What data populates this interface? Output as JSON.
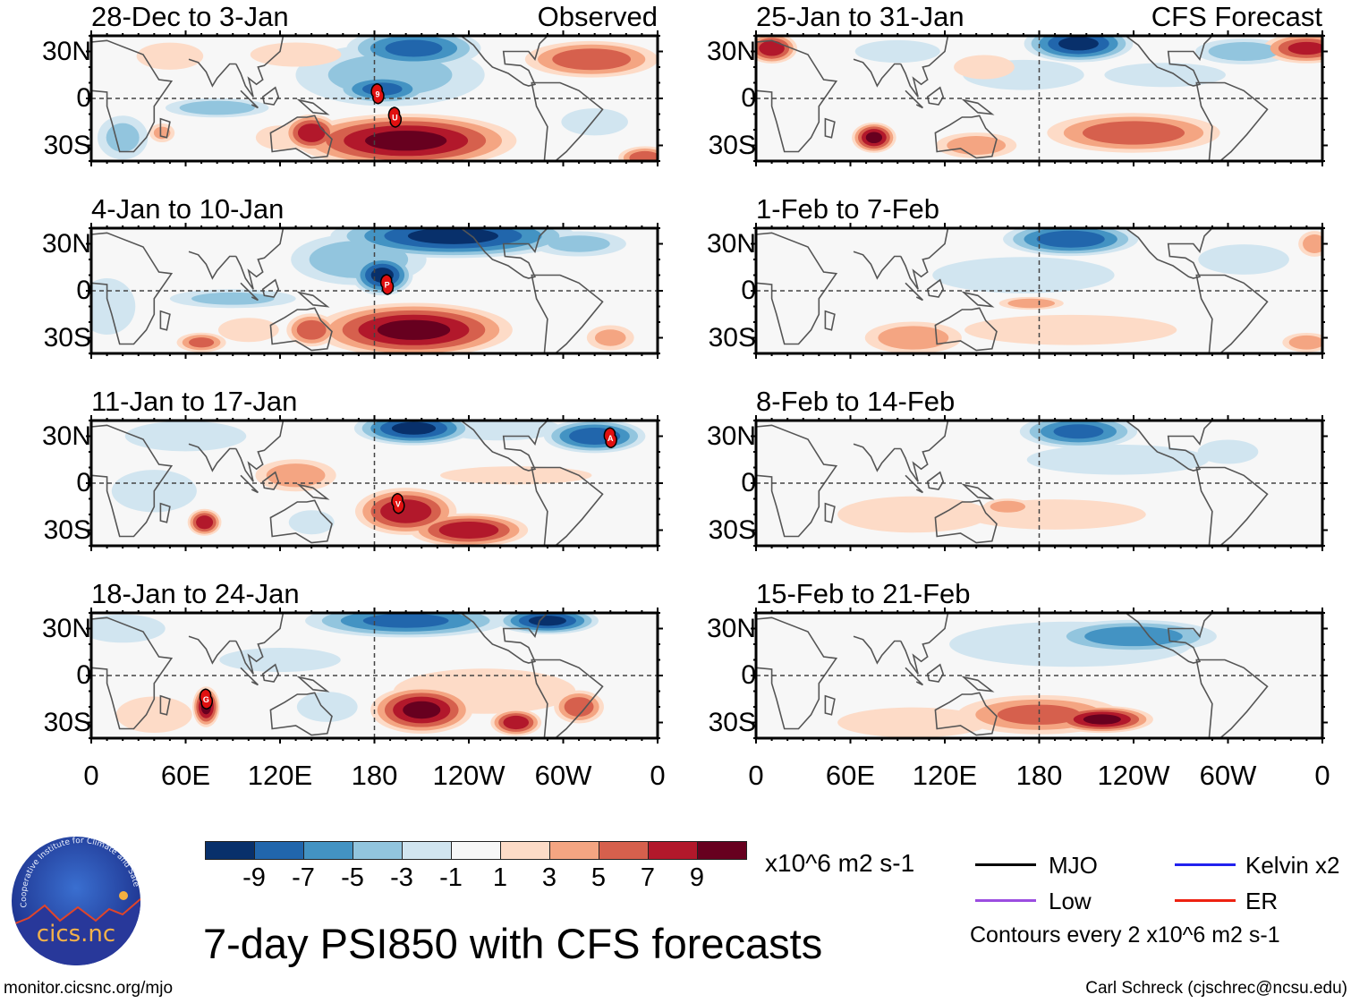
{
  "header": {
    "observed_label": "Observed",
    "forecast_label": "CFS Forecast"
  },
  "lat_labels": [
    "30N",
    "0",
    "30S"
  ],
  "lon_labels": [
    "0",
    "60E",
    "120E",
    "180",
    "120W",
    "60W",
    "0"
  ],
  "lon_values": [
    0,
    60,
    120,
    180,
    240,
    300,
    360
  ],
  "lat_range": [
    -40,
    40
  ],
  "panels": [
    {
      "title": "28-Dec to 3-Jan",
      "column": "observed",
      "storms": [
        {
          "label": "9",
          "lon": 182,
          "lat": 3
        },
        {
          "label": "U",
          "lon": 193,
          "lat": -12
        }
      ],
      "blobs": [
        {
          "lon": 190,
          "lat": 15,
          "rlon": 60,
          "rlat": 20,
          "v": -4
        },
        {
          "lon": 185,
          "lat": 6,
          "rlon": 28,
          "rlat": 9,
          "v": -8
        },
        {
          "lon": 205,
          "lat": 32,
          "rlon": 40,
          "rlat": 12,
          "v": -8
        },
        {
          "lon": 80,
          "lat": -6,
          "rlon": 32,
          "rlat": 6,
          "v": -5
        },
        {
          "lon": 20,
          "lat": -25,
          "rlon": 16,
          "rlat": 14,
          "v": -4
        },
        {
          "lon": 320,
          "lat": -15,
          "rlon": 22,
          "rlat": 9,
          "v": -3
        },
        {
          "lon": 200,
          "lat": -27,
          "rlon": 65,
          "rlat": 16,
          "v": 10
        },
        {
          "lon": 140,
          "lat": -22,
          "rlon": 16,
          "rlat": 11,
          "v": 9
        },
        {
          "lon": 318,
          "lat": 25,
          "rlon": 40,
          "rlat": 11,
          "v": 7
        },
        {
          "lon": 352,
          "lat": -38,
          "rlon": 16,
          "rlat": 7,
          "v": 7
        },
        {
          "lon": 50,
          "lat": 27,
          "rlon": 22,
          "rlat": 9,
          "v": 3
        },
        {
          "lon": 130,
          "lat": 28,
          "rlon": 30,
          "rlat": 8,
          "v": 3
        },
        {
          "lon": 45,
          "lat": -22,
          "rlon": 8,
          "rlat": 6,
          "v": 4
        },
        {
          "lon": 120,
          "lat": -25,
          "rlon": 16,
          "rlat": 8,
          "v": 3
        }
      ]
    },
    {
      "title": "25-Jan to 31-Jan",
      "column": "forecast",
      "storms": [],
      "blobs": [
        {
          "lon": 205,
          "lat": 35,
          "rlon": 32,
          "rlat": 11,
          "v": -10
        },
        {
          "lon": 310,
          "lat": 30,
          "rlon": 30,
          "rlat": 8,
          "v": -5
        },
        {
          "lon": 170,
          "lat": 15,
          "rlon": 40,
          "rlat": 10,
          "v": -3
        },
        {
          "lon": 260,
          "lat": 15,
          "rlon": 40,
          "rlat": 8,
          "v": -3
        },
        {
          "lon": 90,
          "lat": 30,
          "rlon": 30,
          "rlat": 8,
          "v": -2
        },
        {
          "lon": 10,
          "lat": 32,
          "rlon": 15,
          "rlat": 9,
          "v": 9
        },
        {
          "lon": 350,
          "lat": 32,
          "rlon": 26,
          "rlat": 9,
          "v": 8
        },
        {
          "lon": 75,
          "lat": -25,
          "rlon": 13,
          "rlat": 9,
          "v": 10
        },
        {
          "lon": 240,
          "lat": -22,
          "rlon": 52,
          "rlat": 12,
          "v": 7
        },
        {
          "lon": 140,
          "lat": -30,
          "rlon": 25,
          "rlat": 8,
          "v": 5
        },
        {
          "lon": 145,
          "lat": 20,
          "rlon": 20,
          "rlat": 8,
          "v": 3
        }
      ]
    },
    {
      "title": "4-Jan to 10-Jan",
      "column": "observed",
      "storms": [
        {
          "label": "P",
          "lon": 188,
          "lat": 4
        }
      ],
      "blobs": [
        {
          "lon": 230,
          "lat": 35,
          "rlon": 72,
          "rlat": 13,
          "v": -10
        },
        {
          "lon": 185,
          "lat": 10,
          "rlon": 18,
          "rlat": 12,
          "v": -10
        },
        {
          "lon": 170,
          "lat": 20,
          "rlon": 42,
          "rlat": 16,
          "v": -5
        },
        {
          "lon": 90,
          "lat": -5,
          "rlon": 40,
          "rlat": 6,
          "v": -4
        },
        {
          "lon": 10,
          "lat": -10,
          "rlon": 20,
          "rlat": 20,
          "v": -2
        },
        {
          "lon": 310,
          "lat": 30,
          "rlon": 30,
          "rlat": 8,
          "v": -4
        },
        {
          "lon": 205,
          "lat": -25,
          "rlon": 58,
          "rlat": 16,
          "v": 10
        },
        {
          "lon": 140,
          "lat": -25,
          "rlon": 15,
          "rlat": 10,
          "v": 7
        },
        {
          "lon": 70,
          "lat": -33,
          "rlon": 15,
          "rlat": 6,
          "v": 6
        },
        {
          "lon": 330,
          "lat": -30,
          "rlon": 15,
          "rlat": 8,
          "v": 4
        },
        {
          "lon": 100,
          "lat": -25,
          "rlon": 20,
          "rlat": 8,
          "v": 3
        }
      ]
    },
    {
      "title": "1-Feb to 7-Feb",
      "column": "forecast",
      "storms": [],
      "blobs": [
        {
          "lon": 200,
          "lat": 33,
          "rlon": 40,
          "rlat": 10,
          "v": -9
        },
        {
          "lon": 170,
          "lat": 10,
          "rlon": 60,
          "rlat": 12,
          "v": -3
        },
        {
          "lon": 310,
          "lat": 20,
          "rlon": 30,
          "rlat": 10,
          "v": -3
        },
        {
          "lon": 100,
          "lat": -30,
          "rlon": 30,
          "rlat": 10,
          "v": 5
        },
        {
          "lon": 355,
          "lat": 30,
          "rlon": 10,
          "rlat": 8,
          "v": 5
        },
        {
          "lon": 350,
          "lat": -33,
          "rlon": 15,
          "rlat": 6,
          "v": 5
        },
        {
          "lon": 200,
          "lat": -25,
          "rlon": 70,
          "rlat": 10,
          "v": 3
        },
        {
          "lon": 175,
          "lat": -8,
          "rlon": 20,
          "rlat": 4,
          "v": 5
        }
      ]
    },
    {
      "title": "11-Jan to 17-Jan",
      "column": "observed",
      "storms": [
        {
          "label": "A",
          "lon": 330,
          "lat": 29
        },
        {
          "label": "V",
          "lon": 195,
          "lat": -13
        }
      ],
      "blobs": [
        {
          "lon": 205,
          "lat": 35,
          "rlon": 35,
          "rlat": 10,
          "v": -10
        },
        {
          "lon": 320,
          "lat": 30,
          "rlon": 30,
          "rlat": 10,
          "v": -9
        },
        {
          "lon": 260,
          "lat": 35,
          "rlon": 40,
          "rlat": 8,
          "v": -3
        },
        {
          "lon": 60,
          "lat": 30,
          "rlon": 40,
          "rlat": 10,
          "v": -3
        },
        {
          "lon": 140,
          "lat": -25,
          "rlon": 15,
          "rlat": 8,
          "v": -3
        },
        {
          "lon": 40,
          "lat": -5,
          "rlon": 30,
          "rlat": 15,
          "v": -2
        },
        {
          "lon": 200,
          "lat": -18,
          "rlon": 30,
          "rlat": 14,
          "v": 9
        },
        {
          "lon": 240,
          "lat": -30,
          "rlon": 35,
          "rlat": 10,
          "v": 9
        },
        {
          "lon": 72,
          "lat": -25,
          "rlon": 10,
          "rlat": 8,
          "v": 9
        },
        {
          "lon": 130,
          "lat": 5,
          "rlon": 25,
          "rlat": 10,
          "v": 5
        },
        {
          "lon": 270,
          "lat": 5,
          "rlon": 50,
          "rlat": 6,
          "v": 3
        }
      ]
    },
    {
      "title": "8-Feb to 14-Feb",
      "column": "forecast",
      "storms": [],
      "blobs": [
        {
          "lon": 205,
          "lat": 33,
          "rlon": 35,
          "rlat": 10,
          "v": -8
        },
        {
          "lon": 230,
          "lat": 15,
          "rlon": 60,
          "rlat": 10,
          "v": -3
        },
        {
          "lon": 300,
          "lat": 20,
          "rlon": 20,
          "rlat": 8,
          "v": -3
        },
        {
          "lon": 100,
          "lat": -20,
          "rlon": 50,
          "rlat": 12,
          "v": 3
        },
        {
          "lon": 190,
          "lat": -20,
          "rlon": 60,
          "rlat": 10,
          "v": 3
        },
        {
          "lon": 160,
          "lat": -15,
          "rlon": 15,
          "rlat": 5,
          "v": 5
        }
      ]
    },
    {
      "title": "18-Jan to 24-Jan",
      "column": "observed",
      "storms": [
        {
          "label": "G",
          "lon": 73,
          "lat": -15
        }
      ],
      "blobs": [
        {
          "lon": 200,
          "lat": 35,
          "rlon": 60,
          "rlat": 10,
          "v": -8
        },
        {
          "lon": 290,
          "lat": 35,
          "rlon": 30,
          "rlat": 8,
          "v": -10
        },
        {
          "lon": 150,
          "lat": -20,
          "rlon": 20,
          "rlat": 10,
          "v": -3
        },
        {
          "lon": 120,
          "lat": 10,
          "rlon": 40,
          "rlat": 8,
          "v": -3
        },
        {
          "lon": 20,
          "lat": 30,
          "rlon": 30,
          "rlat": 10,
          "v": -2
        },
        {
          "lon": 250,
          "lat": -10,
          "rlon": 60,
          "rlat": 15,
          "v": 3
        },
        {
          "lon": 210,
          "lat": -22,
          "rlon": 30,
          "rlat": 14,
          "v": 10
        },
        {
          "lon": 270,
          "lat": -30,
          "rlon": 15,
          "rlat": 8,
          "v": 9
        },
        {
          "lon": 310,
          "lat": -20,
          "rlon": 15,
          "rlat": 10,
          "v": 7
        },
        {
          "lon": 73,
          "lat": -20,
          "rlon": 8,
          "rlat": 12,
          "v": 10
        },
        {
          "lon": 40,
          "lat": -25,
          "rlon": 25,
          "rlat": 12,
          "v": 3
        }
      ]
    },
    {
      "title": "15-Feb to 21-Feb",
      "column": "forecast",
      "storms": [],
      "blobs": [
        {
          "lon": 200,
          "lat": 20,
          "rlon": 80,
          "rlat": 15,
          "v": -3
        },
        {
          "lon": 240,
          "lat": 25,
          "rlon": 50,
          "rlat": 10,
          "v": -7
        },
        {
          "lon": 100,
          "lat": -30,
          "rlon": 50,
          "rlat": 10,
          "v": 3
        },
        {
          "lon": 180,
          "lat": -25,
          "rlon": 50,
          "rlat": 12,
          "v": 6
        },
        {
          "lon": 220,
          "lat": -28,
          "rlon": 30,
          "rlat": 8,
          "v": 10
        }
      ]
    }
  ],
  "colorbar": {
    "labels": [
      "-9",
      "-7",
      "-5",
      "-3",
      "-1",
      "1",
      "3",
      "5",
      "7",
      "9"
    ],
    "colors": [
      "#08306b",
      "#2166ac",
      "#4393c3",
      "#92c5de",
      "#d1e5f0",
      "#f7f7f7",
      "#fddbc7",
      "#f4a582",
      "#d6604d",
      "#b2182b",
      "#67001f"
    ],
    "units": "x10^6 m2 s-1"
  },
  "title": "7-day PSI850 with CFS forecasts",
  "legend": {
    "items": [
      {
        "label": "MJO",
        "color": "#000000"
      },
      {
        "label": "Kelvin x2",
        "color": "#2222ee"
      },
      {
        "label": "Low",
        "color": "#9b4de0"
      },
      {
        "label": "ER",
        "color": "#ee2211"
      }
    ],
    "contours_note": "Contours every 2 x10^6 m2 s-1"
  },
  "logo": {
    "name": "cics.nc",
    "ring_text": "Cooperative Institute for Climate and Satellites"
  },
  "footer": {
    "url": "monitor.cicsnc.org/mjo",
    "credit": "Carl Schreck (cjschrec@ncsu.edu)"
  }
}
